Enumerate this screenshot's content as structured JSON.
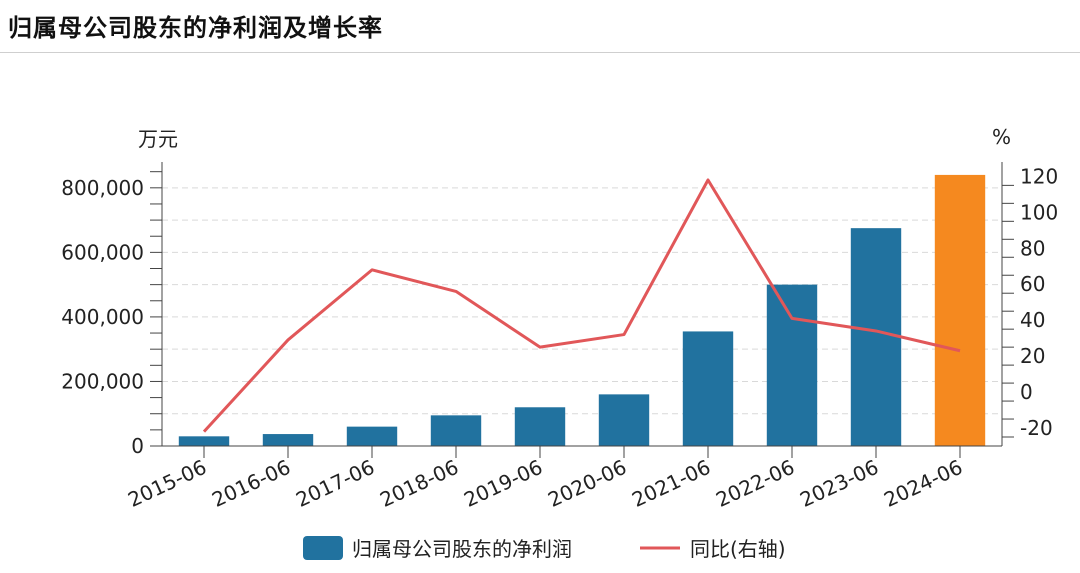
{
  "page": {
    "title": "归属母公司股东的净利润及增长率"
  },
  "chart_data": {
    "type": "bar",
    "title": "归属母公司股东的净利润及增长率",
    "categories": [
      "2015-06",
      "2016-06",
      "2017-06",
      "2018-06",
      "2019-06",
      "2020-06",
      "2021-06",
      "2022-06",
      "2023-06",
      "2024-06"
    ],
    "left_axis": {
      "unit": "万元",
      "ylim": [
        0,
        800000
      ],
      "ticks": [
        0,
        200000,
        400000,
        600000,
        800000
      ],
      "tick_labels": [
        "0",
        "200,000",
        "400,000",
        "600,000",
        "800,000"
      ]
    },
    "right_axis": {
      "unit": "%",
      "ylim": [
        -20,
        120
      ],
      "ticks": [
        -20,
        0,
        20,
        40,
        60,
        80,
        100,
        120
      ],
      "tick_labels": [
        "-20",
        "0",
        "20",
        "40",
        "60",
        "80",
        "100",
        "120"
      ]
    },
    "series": [
      {
        "name": "归属母公司股东的净利润",
        "type": "bar",
        "axis": "left",
        "color": "#21729f",
        "highlight_color": "#f5891f",
        "highlight_index": 9,
        "values": [
          30000,
          37000,
          60000,
          95000,
          120000,
          160000,
          355000,
          500000,
          675000,
          840000
        ]
      },
      {
        "name": "同比(右轴)",
        "type": "line",
        "axis": "right",
        "color": "#e15759",
        "values": [
          -22,
          29,
          68,
          56,
          25,
          32,
          118,
          41,
          34,
          23
        ]
      }
    ],
    "grid": "horizontal-dashed",
    "legend_position": "bottom-center"
  }
}
